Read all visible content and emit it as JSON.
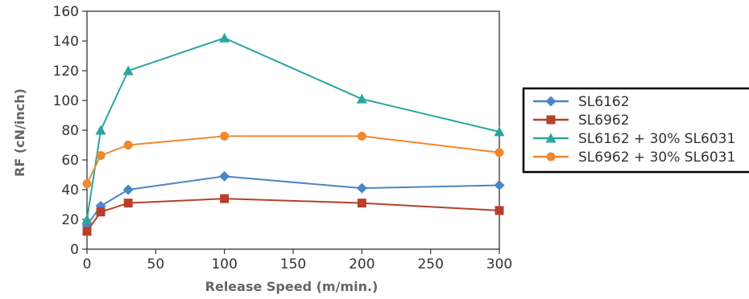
{
  "chart_data": {
    "type": "line",
    "title": "",
    "xlabel": "Release Speed (m/min.)",
    "ylabel": "RF (cN/inch)",
    "xlim": [
      0,
      300
    ],
    "ylim": [
      0,
      160
    ],
    "xticks": [
      0,
      50,
      100,
      150,
      200,
      250,
      300
    ],
    "yticks": [
      0,
      20,
      40,
      60,
      80,
      100,
      120,
      140,
      160
    ],
    "x": [
      0,
      10,
      30,
      100,
      200,
      300
    ],
    "grid": false,
    "legend_position": "right",
    "series": [
      {
        "name": "SL6162",
        "color": "#4a86c8",
        "marker": "diamond",
        "values": [
          16,
          29,
          40,
          49,
          41,
          43
        ]
      },
      {
        "name": "SL6962",
        "color": "#b5412a",
        "marker": "square",
        "values": [
          12,
          25,
          31,
          34,
          31,
          26
        ]
      },
      {
        "name": "SL6162 + 30% SL6031",
        "color": "#2aa6a0",
        "marker": "triangle",
        "values": [
          20,
          80,
          120,
          142,
          101,
          79
        ]
      },
      {
        "name": "SL6962 + 30% SL6031",
        "color": "#f0882e",
        "marker": "circle",
        "values": [
          44,
          63,
          70,
          76,
          76,
          65
        ]
      }
    ]
  }
}
